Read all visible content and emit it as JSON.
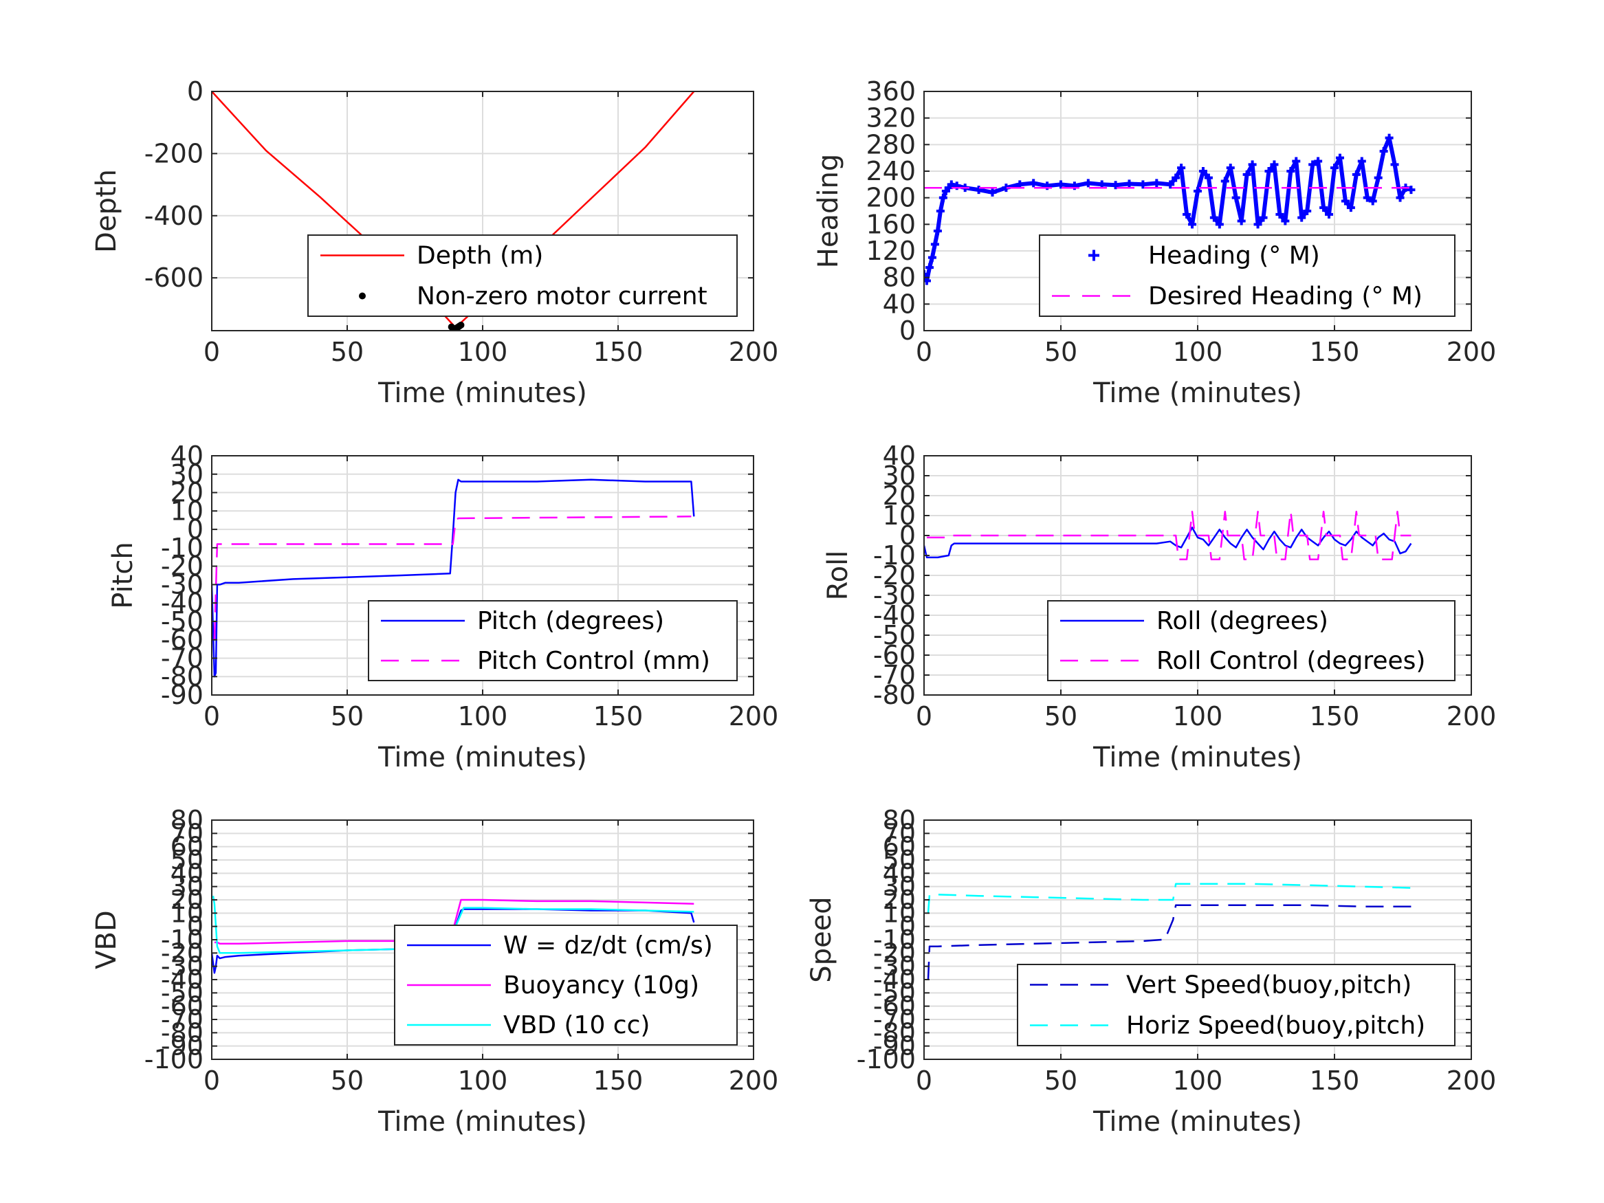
{
  "chart_data": [
    {
      "type": "line",
      "xlabel": "Time (minutes)",
      "ylabel": "Depth",
      "xlim": [
        0,
        200
      ],
      "ylim": [
        -770,
        0
      ],
      "xticks": [
        0,
        50,
        100,
        150,
        200
      ],
      "yticks": [
        0,
        -200,
        -400,
        -600
      ],
      "grid": true,
      "legend": "bottom-right",
      "series": [
        {
          "name": "Depth (m)",
          "color": "#ff0000",
          "style": "solid",
          "x": [
            0,
            20,
            40,
            60,
            80,
            90,
            100,
            120,
            140,
            160,
            178
          ],
          "y": [
            0,
            -190,
            -340,
            -500,
            -665,
            -760,
            -680,
            -510,
            -345,
            -180,
            0
          ]
        },
        {
          "name": "Non-zero motor current",
          "color": "#000000",
          "style": "dots",
          "x": [
            88.5,
            89,
            89.5,
            90,
            90.5,
            91,
            91.5,
            92
          ],
          "y": [
            -758,
            -762,
            -764,
            -763,
            -761,
            -758,
            -755,
            -752
          ]
        }
      ]
    },
    {
      "type": "line",
      "xlabel": "Time (minutes)",
      "ylabel": "Heading",
      "xlim": [
        0,
        200
      ],
      "ylim": [
        0,
        360
      ],
      "xticks": [
        0,
        50,
        100,
        150,
        200
      ],
      "yticks": [
        0,
        40,
        80,
        120,
        160,
        200,
        240,
        280,
        320,
        360
      ],
      "grid": true,
      "legend": "bottom-right",
      "series": [
        {
          "name": "Heading (° M)",
          "color": "#0000ff",
          "style": "plus",
          "x": [
            0,
            1,
            2,
            3,
            4,
            5,
            6,
            7,
            8,
            9,
            10,
            12,
            15,
            20,
            25,
            30,
            35,
            40,
            45,
            50,
            55,
            60,
            65,
            70,
            75,
            80,
            85,
            90,
            92,
            94,
            96,
            98,
            100,
            102,
            104,
            106,
            108,
            110,
            112,
            114,
            116,
            118,
            120,
            122,
            124,
            126,
            128,
            130,
            132,
            134,
            136,
            138,
            140,
            142,
            144,
            146,
            148,
            150,
            152,
            154,
            156,
            158,
            160,
            162,
            164,
            166,
            168,
            170,
            172,
            174,
            176,
            178
          ],
          "y": [
            85,
            75,
            95,
            110,
            130,
            150,
            180,
            200,
            210,
            215,
            220,
            218,
            215,
            212,
            208,
            215,
            220,
            222,
            218,
            220,
            218,
            222,
            220,
            219,
            221,
            220,
            222,
            220,
            230,
            245,
            175,
            160,
            210,
            240,
            230,
            170,
            160,
            225,
            245,
            200,
            165,
            235,
            250,
            160,
            170,
            240,
            250,
            175,
            165,
            240,
            255,
            170,
            180,
            250,
            255,
            185,
            175,
            245,
            260,
            195,
            185,
            235,
            255,
            200,
            195,
            230,
            270,
            290,
            250,
            200,
            215,
            212
          ]
        },
        {
          "name": "Desired Heading (° M)",
          "color": "#ff00ff",
          "style": "dashed",
          "x": [
            0,
            178
          ],
          "y": [
            215,
            215
          ]
        }
      ]
    },
    {
      "type": "line",
      "xlabel": "Time (minutes)",
      "ylabel": "Pitch",
      "xlim": [
        0,
        200
      ],
      "ylim": [
        -90,
        40
      ],
      "xticks": [
        0,
        50,
        100,
        150,
        200
      ],
      "yticks": [
        40,
        30,
        20,
        10,
        0,
        -10,
        -20,
        -30,
        -40,
        -50,
        -60,
        -70,
        -80,
        -90
      ],
      "grid": true,
      "legend": "bottom-right",
      "series": [
        {
          "name": "Pitch (degrees)",
          "color": "#0000ff",
          "style": "solid",
          "x": [
            0,
            1,
            1.5,
            2,
            3,
            5,
            10,
            30,
            50,
            70,
            88,
            89,
            90,
            91,
            92,
            100,
            120,
            140,
            160,
            177,
            178
          ],
          "y": [
            -30,
            -80,
            -78,
            -30,
            -30,
            -29,
            -29,
            -27,
            -26,
            -25,
            -24,
            -3,
            20,
            27,
            26,
            26,
            26,
            27,
            26,
            26,
            7
          ]
        },
        {
          "name": "Pitch Control (mm)",
          "color": "#ff00ff",
          "style": "dashed",
          "x": [
            1,
            2,
            3,
            88,
            89,
            90,
            91,
            177
          ],
          "y": [
            -60,
            -8,
            -8,
            -8,
            -8,
            5,
            6,
            7
          ]
        }
      ]
    },
    {
      "type": "line",
      "xlabel": "Time (minutes)",
      "ylabel": "Roll",
      "xlim": [
        0,
        200
      ],
      "ylim": [
        -80,
        40
      ],
      "xticks": [
        0,
        50,
        100,
        150,
        200
      ],
      "yticks": [
        40,
        30,
        20,
        10,
        0,
        -10,
        -20,
        -30,
        -40,
        -50,
        -60,
        -70,
        -80
      ],
      "grid": true,
      "legend": "bottom-right",
      "series": [
        {
          "name": "Roll (degrees)",
          "color": "#0000ff",
          "style": "solid",
          "x": [
            0,
            1,
            5,
            9,
            10,
            11,
            30,
            60,
            85,
            90,
            92,
            94,
            96,
            98,
            100,
            102,
            104,
            106,
            108,
            110,
            112,
            114,
            116,
            118,
            120,
            122,
            124,
            126,
            128,
            130,
            132,
            134,
            136,
            138,
            140,
            142,
            144,
            146,
            148,
            150,
            152,
            154,
            156,
            158,
            160,
            162,
            164,
            166,
            168,
            170,
            172,
            174,
            176,
            178
          ],
          "y": [
            -5,
            -11,
            -11,
            -10,
            -5,
            -4,
            -4,
            -4,
            -4,
            -3,
            -5,
            -6,
            -1,
            4,
            -1,
            -2,
            -5,
            -1,
            3,
            -1,
            -4,
            -6,
            -1,
            3,
            -1,
            -4,
            -7,
            -2,
            2,
            -2,
            -5,
            -6,
            -1,
            3,
            -1,
            -3,
            -5,
            -1,
            2,
            -2,
            -4,
            -5,
            -2,
            2,
            -1,
            -3,
            -5,
            -1,
            1,
            -2,
            -3,
            -9,
            -8,
            -4
          ]
        },
        {
          "name": "Roll Control (degrees)",
          "color": "#ff00ff",
          "style": "dashed",
          "x": [
            1,
            10,
            10.5,
            92,
            93,
            96,
            97,
            98,
            99,
            104,
            105,
            108,
            109,
            110,
            111,
            116,
            117,
            120,
            121,
            122,
            123,
            128,
            129,
            132,
            133,
            134,
            135,
            140,
            141,
            144,
            145,
            146,
            147,
            152,
            153,
            156,
            157,
            158,
            159,
            165,
            166,
            171,
            172,
            173,
            174,
            178
          ],
          "y": [
            -1,
            -1,
            0,
            0,
            -12,
            -12,
            0,
            12,
            0,
            0,
            -12,
            -12,
            0,
            12,
            0,
            0,
            -12,
            -12,
            0,
            12,
            0,
            0,
            -12,
            -12,
            0,
            12,
            0,
            0,
            -12,
            -12,
            0,
            12,
            0,
            0,
            -12,
            -12,
            0,
            12,
            0,
            0,
            -12,
            -12,
            0,
            12,
            0,
            0
          ]
        }
      ]
    },
    {
      "type": "line",
      "xlabel": "Time (minutes)",
      "ylabel": "VBD",
      "xlim": [
        0,
        200
      ],
      "ylim": [
        -100,
        80
      ],
      "xticks": [
        0,
        50,
        100,
        150,
        200
      ],
      "yticks": [
        80,
        70,
        60,
        50,
        40,
        30,
        20,
        10,
        0,
        -10,
        -20,
        -30,
        -40,
        -50,
        -60,
        -70,
        -80,
        -90,
        -100
      ],
      "grid": true,
      "legend": "bottom-right",
      "series": [
        {
          "name": "W = dz/dt (cm/s)",
          "color": "#0000ff",
          "style": "solid",
          "x": [
            0,
            1,
            1.5,
            2,
            3,
            5,
            10,
            30,
            50,
            70,
            87,
            88,
            90,
            92,
            93,
            100,
            120,
            140,
            160,
            177,
            178
          ],
          "y": [
            -20,
            -35,
            -30,
            -22,
            -24,
            -23,
            -22,
            -20,
            -18,
            -17,
            -17,
            -16,
            0,
            12,
            13,
            13,
            13,
            12,
            12,
            10,
            3
          ]
        },
        {
          "name": "Buoyancy (10g)",
          "color": "#ff00ff",
          "style": "solid",
          "x": [
            1,
            2,
            3,
            10,
            30,
            50,
            70,
            88,
            92,
            93,
            100,
            120,
            140,
            160,
            178
          ],
          "y": [
            -12,
            -12,
            -13,
            -13,
            -12,
            -11,
            -11,
            -11,
            20,
            20,
            20,
            19,
            19,
            18,
            17
          ]
        },
        {
          "name": "VBD (10 cc)",
          "color": "#00ffff",
          "style": "solid",
          "x": [
            0.5,
            1,
            2,
            3,
            10,
            30,
            50,
            70,
            87,
            90,
            93,
            100,
            120,
            140,
            160,
            178
          ],
          "y": [
            23,
            17,
            -15,
            -20,
            -20,
            -19,
            -18,
            -17,
            -16,
            0,
            14,
            14,
            13,
            13,
            12,
            11
          ]
        }
      ]
    },
    {
      "type": "line",
      "xlabel": "Time (minutes)",
      "ylabel": "Speed",
      "xlim": [
        0,
        200
      ],
      "ylim": [
        -100,
        80
      ],
      "xticks": [
        0,
        50,
        100,
        150,
        200
      ],
      "yticks": [
        80,
        70,
        60,
        50,
        40,
        30,
        20,
        10,
        0,
        -10,
        -20,
        -30,
        -40,
        -50,
        -60,
        -70,
        -80,
        -90,
        -100
      ],
      "grid": true,
      "legend": "bottom-right",
      "series": [
        {
          "name": "Vert Speed(buoy,pitch)",
          "color": "#0000cc",
          "style": "dashed",
          "x": [
            1.5,
            2,
            5,
            20,
            40,
            60,
            80,
            87,
            88,
            91,
            92,
            100,
            120,
            140,
            160,
            178
          ],
          "y": [
            -40,
            -15,
            -15,
            -14,
            -13,
            -12,
            -11,
            -10,
            -10,
            5,
            16,
            16,
            16,
            16,
            15,
            15
          ]
        },
        {
          "name": "Horiz Speed(buoy,pitch)",
          "color": "#00ffff",
          "style": "dashed",
          "x": [
            1.5,
            2,
            5,
            20,
            40,
            60,
            80,
            88,
            91,
            92,
            100,
            120,
            140,
            160,
            178
          ],
          "y": [
            10,
            24,
            24,
            23,
            22,
            21,
            20,
            20,
            20,
            32,
            32,
            32,
            31,
            30,
            29
          ]
        }
      ]
    }
  ]
}
